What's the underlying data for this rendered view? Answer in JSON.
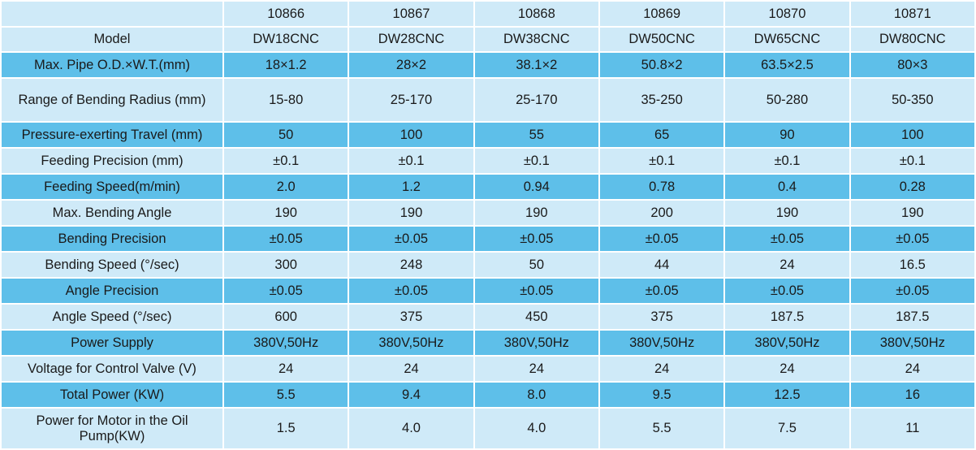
{
  "table": {
    "header": [
      "10866",
      "10867",
      "10868",
      "10869",
      "10870",
      "10871"
    ],
    "rows": [
      [
        "Model",
        "DW18CNC",
        "DW28CNC",
        "DW38CNC",
        "DW50CNC",
        "DW65CNC",
        "DW80CNC"
      ],
      [
        "Max. Pipe O.D.×W.T.(mm)",
        "18×1.2",
        "28×2",
        "38.1×2",
        "50.8×2",
        "63.5×2.5",
        "80×3"
      ],
      [
        "Range of Bending Radius (mm)",
        "15-80",
        "25-170",
        "25-170",
        "35-250",
        "50-280",
        "50-350"
      ],
      [
        "Pressure-exerting Travel (mm)",
        "50",
        "100",
        "55",
        "65",
        "90",
        "100"
      ],
      [
        "Feeding Precision (mm)",
        "±0.1",
        "±0.1",
        "±0.1",
        "±0.1",
        "±0.1",
        "±0.1"
      ],
      [
        "Feeding Speed(m/min)",
        "2.0",
        "1.2",
        "0.94",
        "0.78",
        "0.4",
        "0.28"
      ],
      [
        "Max. Bending Angle",
        "190",
        "190",
        "190",
        "200",
        "190",
        "190"
      ],
      [
        "Bending Precision",
        "±0.05",
        "±0.05",
        "±0.05",
        "±0.05",
        "±0.05",
        "±0.05"
      ],
      [
        "Bending Speed (°/sec)",
        "300",
        "248",
        "50",
        "44",
        "24",
        "16.5"
      ],
      [
        "Angle Precision",
        "±0.05",
        "±0.05",
        "±0.05",
        "±0.05",
        "±0.05",
        "±0.05"
      ],
      [
        "Angle Speed (°/sec)",
        "600",
        "375",
        "450",
        "375",
        "187.5",
        "187.5"
      ],
      [
        "Power Supply",
        "380V,50Hz",
        "380V,50Hz",
        "380V,50Hz",
        "380V,50Hz",
        "380V,50Hz",
        "380V,50Hz"
      ],
      [
        "Voltage for Control Valve  (V)",
        "24",
        "24",
        "24",
        "24",
        "24",
        "24"
      ],
      [
        "Total Power (KW)",
        "5.5",
        "9.4",
        "8.0",
        "9.5",
        "12.5",
        "16"
      ],
      [
        "Power for Motor in the Oil Pump(KW)",
        "1.5",
        "4.0",
        "4.0",
        "5.5",
        "7.5",
        "11"
      ]
    ]
  }
}
